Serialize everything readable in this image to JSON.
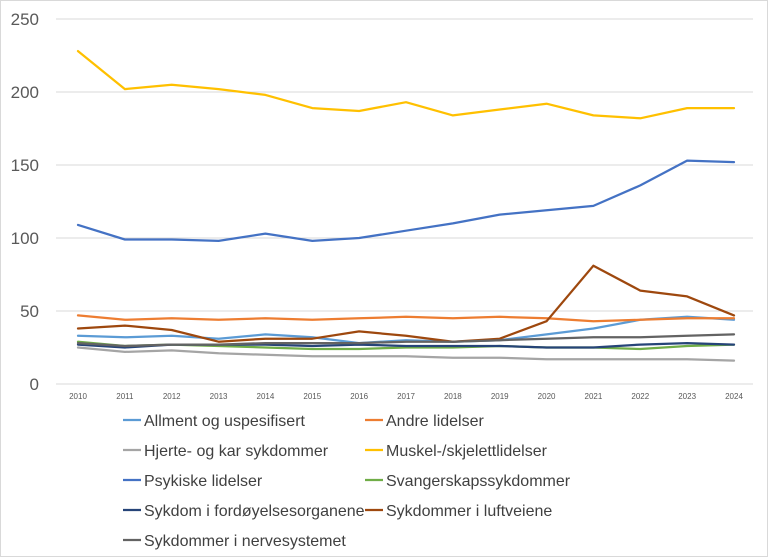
{
  "chart_data": {
    "type": "line",
    "title": "",
    "xlabel": "",
    "ylabel": "",
    "ylim": [
      0,
      250
    ],
    "yticks": [
      0,
      50,
      100,
      150,
      200,
      250
    ],
    "grid": true,
    "legend_position": "bottom",
    "x": [
      "2010",
      "2011",
      "2012",
      "2013",
      "2014",
      "2015",
      "2016",
      "2017",
      "2018",
      "2019",
      "2020",
      "2021",
      "2022",
      "2023",
      "2024"
    ],
    "series": [
      {
        "name": "Allment og uspesifisert",
        "color": "#5B9BD5",
        "values": [
          33,
          32,
          33,
          31,
          34,
          32,
          28,
          30,
          29,
          30,
          34,
          38,
          44,
          46,
          44
        ]
      },
      {
        "name": "Andre lidelser",
        "color": "#ED7D31",
        "values": [
          47,
          44,
          45,
          44,
          45,
          44,
          45,
          46,
          45,
          46,
          45,
          43,
          44,
          45,
          45
        ]
      },
      {
        "name": "Hjerte- og kar sykdommer",
        "color": "#A5A5A5",
        "values": [
          25,
          22,
          23,
          21,
          20,
          19,
          19,
          19,
          18,
          18,
          17,
          17,
          17,
          17,
          16
        ]
      },
      {
        "name": "Muskel-/skjelettlidelser",
        "color": "#FFC000",
        "values": [
          228,
          202,
          205,
          202,
          198,
          189,
          187,
          193,
          184,
          188,
          192,
          184,
          182,
          189,
          189
        ]
      },
      {
        "name": "Psykiske lidelser",
        "color": "#4472C4",
        "values": [
          109,
          99,
          99,
          98,
          103,
          98,
          100,
          105,
          110,
          116,
          119,
          122,
          136,
          153,
          152
        ]
      },
      {
        "name": "Svangerskapssykdommer",
        "color": "#70AD47",
        "values": [
          29,
          26,
          27,
          26,
          25,
          24,
          24,
          25,
          25,
          26,
          25,
          25,
          24,
          26,
          27
        ]
      },
      {
        "name": "Sykdom i fordøyelsesorganene",
        "color": "#264478",
        "values": [
          27,
          25,
          27,
          27,
          27,
          26,
          27,
          26,
          26,
          26,
          25,
          25,
          27,
          28,
          27
        ]
      },
      {
        "name": "Sykdommer i luftveiene",
        "color": "#9E480E",
        "values": [
          38,
          40,
          37,
          29,
          31,
          31,
          36,
          33,
          29,
          31,
          43,
          81,
          64,
          60,
          47
        ]
      },
      {
        "name": "Sykdommer i nervesystemet",
        "color": "#636363",
        "values": [
          28,
          26,
          27,
          27,
          28,
          28,
          28,
          29,
          29,
          30,
          31,
          32,
          32,
          33,
          34
        ]
      }
    ]
  }
}
